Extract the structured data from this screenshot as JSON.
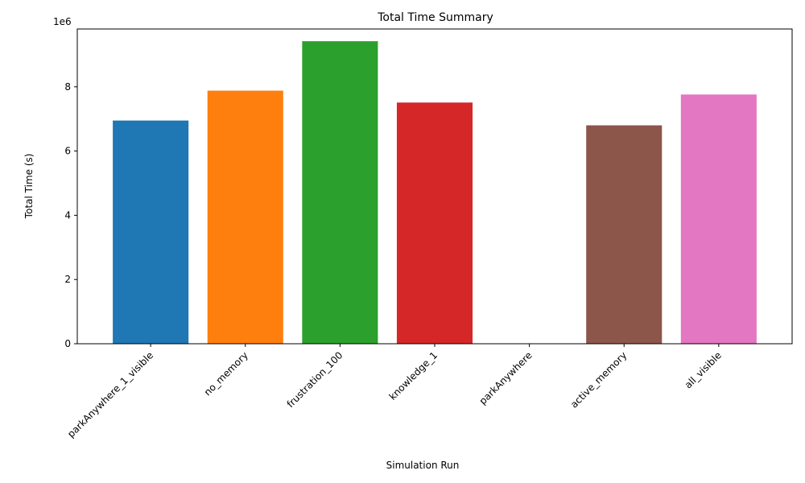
{
  "chart_data": {
    "type": "bar",
    "title": "Total Time Summary",
    "xlabel": "Simulation Run",
    "ylabel": "Total Time (s)",
    "y_offset_label": "1e6",
    "categories": [
      "parkAnywhere_1_visible",
      "no_memory",
      "frustration_100",
      "knowledge_1",
      "parkAnywhere",
      "active_memory",
      "all_visible"
    ],
    "values": [
      6950000,
      7880000,
      9420000,
      7510000,
      0,
      6800000,
      7760000
    ],
    "colors": [
      "#1f77b4",
      "#ff7f0e",
      "#2ca02c",
      "#d62728",
      "#9467bd",
      "#8c564b",
      "#e377c2"
    ],
    "ylim": [
      0,
      9800000
    ],
    "yticks": [
      0,
      2000000,
      4000000,
      6000000,
      8000000
    ],
    "ytick_labels": [
      "0",
      "2",
      "4",
      "6",
      "8"
    ],
    "grid": false,
    "legend": "none"
  }
}
